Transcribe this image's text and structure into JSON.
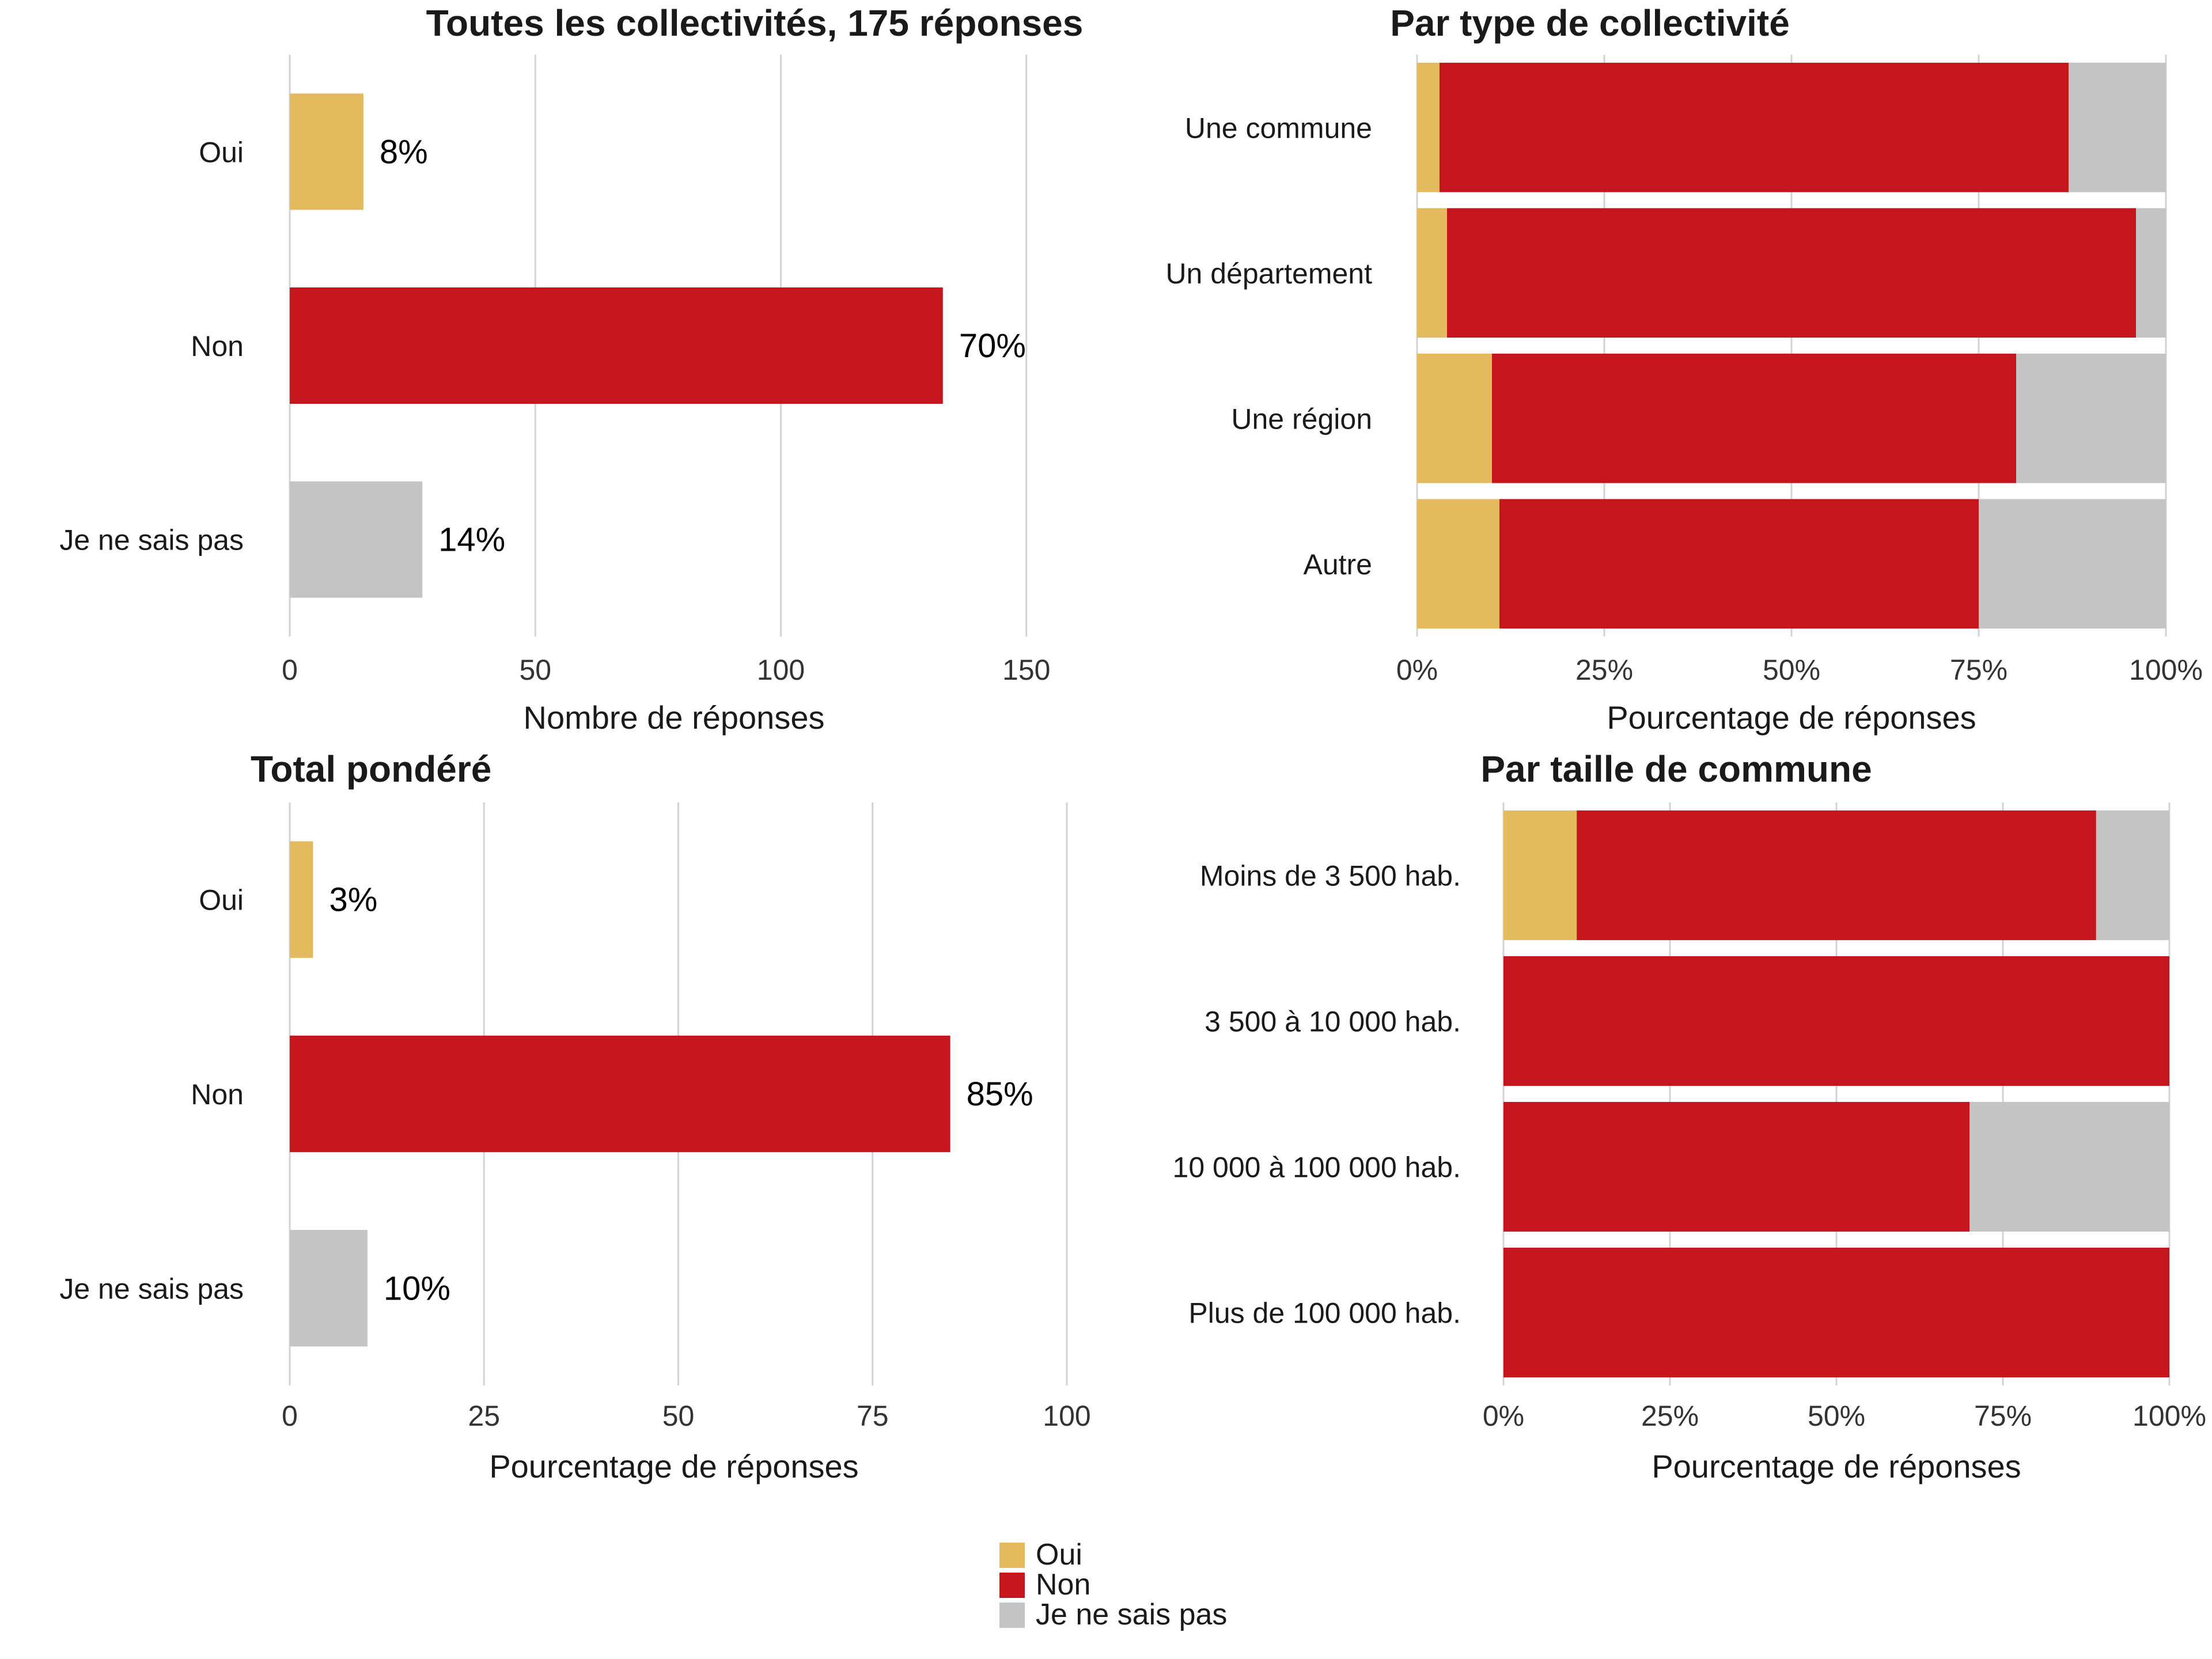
{
  "chart_data": [
    {
      "id": "p1",
      "type": "bar",
      "orientation": "horizontal",
      "title": "Toutes les collectivités, 175 réponses",
      "xlabel": "Nombre de réponses",
      "categories": [
        "Oui",
        "Non",
        "Je ne sais pas"
      ],
      "values": [
        15,
        133,
        27
      ],
      "data_labels": [
        "8%",
        "70%",
        "14%"
      ],
      "colors": [
        "#E3BB5E",
        "#C4161C",
        "#C4C4C4"
      ],
      "xlim": [
        0,
        160
      ],
      "xticks": [
        0,
        50,
        100,
        150
      ],
      "xtick_labels": [
        "0",
        "50",
        "100",
        "150"
      ],
      "grid": true
    },
    {
      "id": "p2",
      "type": "bar",
      "orientation": "horizontal",
      "stacked": true,
      "title": "Par type de collectivité",
      "xlabel": "Pourcentage de réponses",
      "categories": [
        "Une commune",
        "Un département",
        "Une région",
        "Autre"
      ],
      "series": [
        {
          "name": "Oui",
          "color": "#E3BB5E",
          "values": [
            3,
            4,
            10,
            11
          ]
        },
        {
          "name": "Non",
          "color": "#C4161C",
          "values": [
            84,
            92,
            70,
            64
          ]
        },
        {
          "name": "Je ne sais pas",
          "color": "#C4C4C4",
          "values": [
            13,
            4,
            20,
            25
          ]
        }
      ],
      "xlim": [
        0,
        100
      ],
      "xticks": [
        0,
        25,
        50,
        75,
        100
      ],
      "xtick_labels": [
        "0%",
        "25%",
        "50%",
        "75%",
        "100%"
      ],
      "grid": true
    },
    {
      "id": "p3",
      "type": "bar",
      "orientation": "horizontal",
      "title": "Total pondéré",
      "xlabel": "Pourcentage de réponses",
      "categories": [
        "Oui",
        "Non",
        "Je ne sais pas"
      ],
      "values": [
        3,
        85,
        10
      ],
      "data_labels": [
        "3%",
        "85%",
        "10%"
      ],
      "colors": [
        "#E3BB5E",
        "#C4161C",
        "#C4C4C4"
      ],
      "xlim": [
        0,
        100
      ],
      "xticks": [
        0,
        25,
        50,
        75,
        100
      ],
      "xtick_labels": [
        "0",
        "25",
        "50",
        "75",
        "100"
      ],
      "grid": true
    },
    {
      "id": "p4",
      "type": "bar",
      "orientation": "horizontal",
      "stacked": true,
      "title": "Par taille de commune",
      "xlabel": "Pourcentage de réponses",
      "categories": [
        "Moins de 3 500 hab.",
        "3 500 à 10 000 hab.",
        "10 000 à 100 000 hab.",
        "Plus de 100 000 hab."
      ],
      "series": [
        {
          "name": "Oui",
          "color": "#E3BB5E",
          "values": [
            11,
            0,
            0,
            0
          ]
        },
        {
          "name": "Non",
          "color": "#C4161C",
          "values": [
            78,
            100,
            70,
            100
          ]
        },
        {
          "name": "Je ne sais pas",
          "color": "#C4C4C4",
          "values": [
            11,
            0,
            30,
            0
          ]
        }
      ],
      "xlim": [
        0,
        100
      ],
      "xticks": [
        0,
        25,
        50,
        75,
        100
      ],
      "xtick_labels": [
        "0%",
        "25%",
        "50%",
        "75%",
        "100%"
      ],
      "grid": true
    }
  ],
  "legend": {
    "items": [
      {
        "label": "Oui",
        "color": "#E3BB5E"
      },
      {
        "label": "Non",
        "color": "#C4161C"
      },
      {
        "label": "Je ne sais pas",
        "color": "#C4C4C4"
      }
    ]
  }
}
